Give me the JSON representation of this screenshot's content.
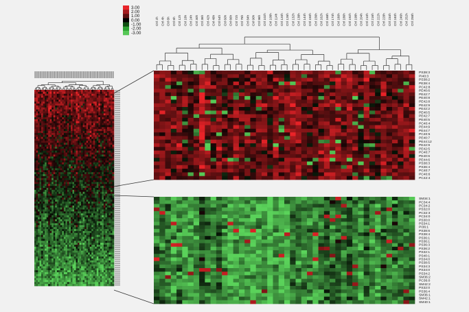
{
  "legend": {
    "ticks": [
      "3.00",
      "2.00",
      "1.00",
      "0.00",
      "-1.00",
      "-2.00",
      "-3.00"
    ],
    "colors": [
      "#e8242a",
      "#a21a1e",
      "#5a0f10",
      "#000000",
      "#0f4f12",
      "#2ca232",
      "#56c756"
    ]
  },
  "colors": {
    "background": "#f1f1f1",
    "high": "#e8242a",
    "mid": "#000000",
    "low": "#5ad15a",
    "tree": "#333333",
    "connector": "#333333"
  },
  "chart_data": [
    {
      "type": "heatmap",
      "name_role": "overview",
      "rows": 100,
      "cols": 46,
      "column_labels_note": "",
      "value_range": [
        -3,
        3
      ],
      "trend": "rows near top mostly positive (red), rows near bottom mostly negative (green)"
    },
    {
      "type": "heatmap",
      "name_role": "zoom-top",
      "cols": 46,
      "column_labels": [
        "Ctrl 2h",
        "Ctrl 4h",
        "Ctrl 6h",
        "Ctrl 8h",
        "Ctrl 12h",
        "Ctrl 18h",
        "Ctrl 24h",
        "Ctrl 30h",
        "Ctrl 36h",
        "Ctrl 42h",
        "Ctrl 48h",
        "Ctrl 54h",
        "Ctrl 60h",
        "Ctrl 66h",
        "Ctrl 72h",
        "Ctrl 78h",
        "Ctrl 84h",
        "Ctrl 90h",
        "Ctrl 96h",
        "Ctrl 102h",
        "Ctrl 108h",
        "Ctrl 114h",
        "Ctrl 120h",
        "Ctrl 126h",
        "Ctrl 132h",
        "Ctrl 138h",
        "Ctrl 144h",
        "Ctrl 150h",
        "Ctrl 156h",
        "Ctrl 162h",
        "Ctrl 168h",
        "Ctrl 174h",
        "Ctrl 180h",
        "Ctrl 186h",
        "Ctrl 192h",
        "Ctrl 198h",
        "Ctrl 204h",
        "Ctrl 210h",
        "Ctrl 216h",
        "Ctrl 222h",
        "Ctrl 228h",
        "Ctrl 234h",
        "Ctrl 240h",
        "Ctrl 246h",
        "Ctrl 252h",
        "Ctrl 258h"
      ],
      "row_labels": [
        "PS38:3",
        "PI40:3",
        "PS38:2",
        "PE38:4",
        "PC42:8",
        "PE40:6",
        "PE42:7",
        "PE40:8",
        "PE42:8",
        "PE42:9",
        "PE42:2",
        "PE40:5",
        "PE42:7",
        "PE40:5",
        "PC40:4",
        "PE44:9",
        "PE44:7",
        "PC40:5",
        "PE40:7",
        "PE44:12",
        "PE42:9",
        "PE42:5",
        "PC40:7",
        "PE40:6",
        "PE44:6",
        "PS38:3",
        "PS36:4",
        "PC40:7",
        "PC40:6",
        "PC42:4"
      ],
      "value_range": [
        -3,
        3
      ],
      "trend": "predominantly positive (red) with scattered green cells"
    },
    {
      "type": "heatmap",
      "name_role": "zoom-bottom",
      "cols": 46,
      "row_labels": [
        "SM34:1",
        "PC34:4",
        "PC34:2",
        "PS32:0",
        "PC32:3",
        "PC34:0",
        "PS30:0",
        "PS34:1",
        "PI36:1",
        "PS38:6",
        "PS38:4",
        "PS36:1",
        "PS36:1",
        "PS36:3",
        "PS36:2",
        "PS32:1",
        "PS40:1",
        "PS34:0",
        "PS38:5",
        "PS34:3",
        "PS34:0",
        "PS34:2",
        "SM36:2",
        "PC36:0",
        "SM42:2",
        "PS32:0",
        "PS36:4",
        "SM36:1",
        "SM42:1",
        "SM40:1"
      ],
      "value_range": [
        -3,
        3
      ],
      "trend": "predominantly negative (green) with sparse red cells"
    }
  ]
}
